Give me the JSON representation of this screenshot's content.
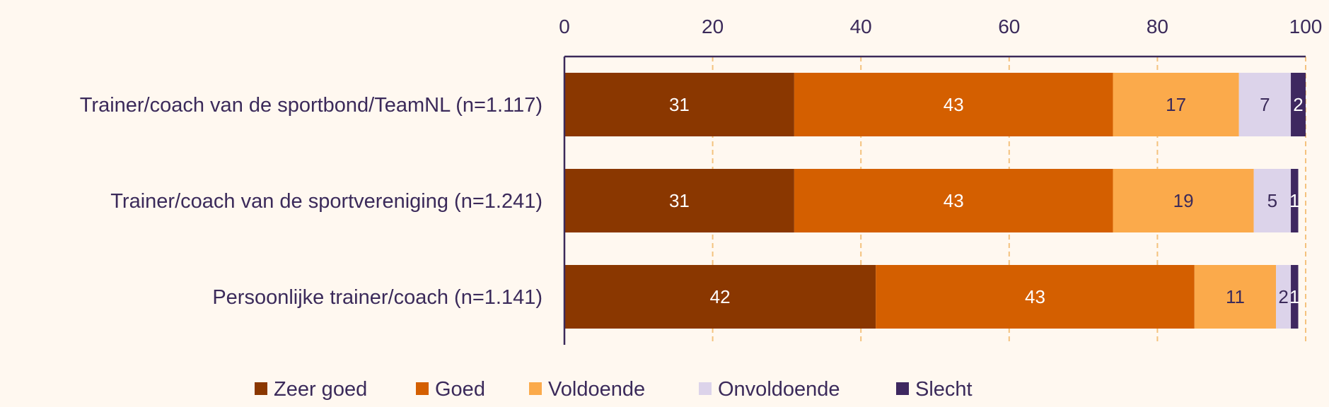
{
  "chart_data": {
    "type": "bar",
    "orientation": "horizontal",
    "stacked": true,
    "categories": [
      "Trainer/coach van de sportbond/TeamNL (n=1.117)",
      "Trainer/coach van de sportvereniging (n=1.241)",
      "Persoonlijke trainer/coach (n=1.141)"
    ],
    "series": [
      {
        "name": "Zeer goed",
        "color": "#8a3700",
        "label_color": "#ffffff",
        "values": [
          31,
          31,
          42
        ]
      },
      {
        "name": "Goed",
        "color": "#d45f00",
        "label_color": "#ffffff",
        "values": [
          43,
          43,
          43
        ]
      },
      {
        "name": "Voldoende",
        "color": "#fbaa4b",
        "label_color": "#3b2a5a",
        "values": [
          17,
          19,
          11
        ]
      },
      {
        "name": "Onvoldoende",
        "color": "#dcd3ea",
        "label_color": "#3b2a5a",
        "values": [
          7,
          5,
          2
        ]
      },
      {
        "name": "Slecht",
        "color": "#3e2860",
        "label_color": "#ffffff",
        "values": [
          2,
          1,
          1
        ]
      }
    ],
    "xlim": [
      0,
      100
    ],
    "xticks": [
      "0",
      "20",
      "40",
      "60",
      "80",
      "100"
    ],
    "x_axis_position": "top",
    "grid": true,
    "legend_position": "bottom"
  }
}
